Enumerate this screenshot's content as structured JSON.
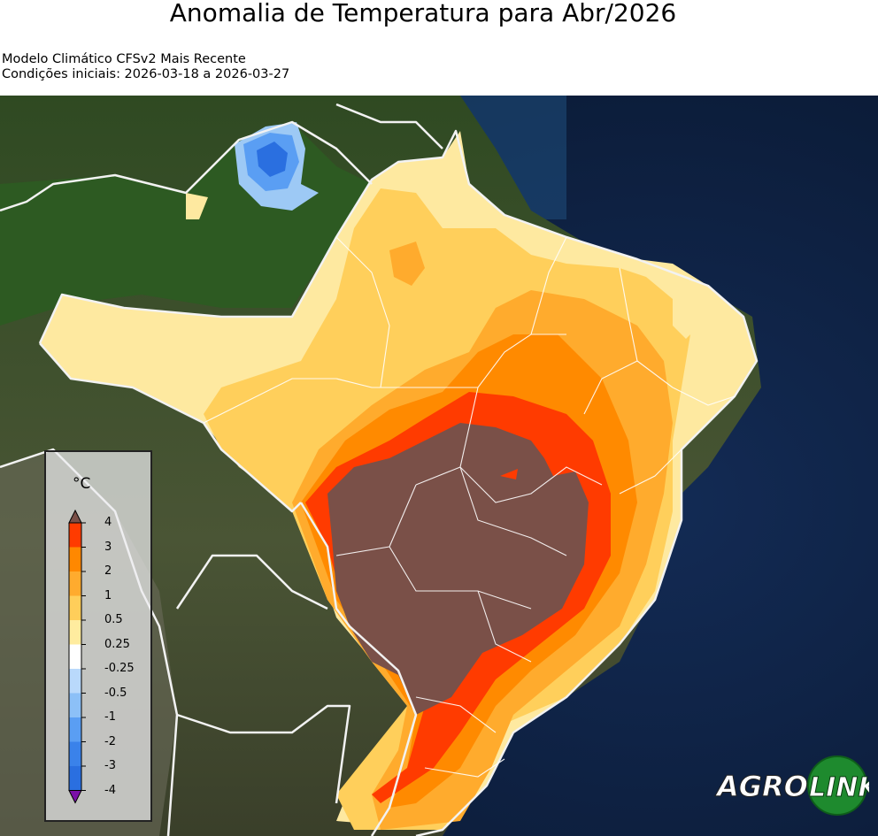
{
  "title": "Anomalia de Temperatura para Abr/2026",
  "subtitle_line1": "Modelo Climático CFSv2 Mais Recente",
  "subtitle_line2": "Condições iniciais: 2026-03-18 a 2026-03-27",
  "legend": {
    "unit": "°C",
    "ticks": [
      "4",
      "3",
      "2",
      "1",
      "0.5",
      "0.25",
      "-0.25",
      "-0.5",
      "-1",
      "-2",
      "-3",
      "-4"
    ],
    "colors": [
      "#ff3b00",
      "#ff8800",
      "#ffab2e",
      "#ffce5a",
      "#ffec9f",
      "#ffffff",
      "#b9d9fb",
      "#8cc0f7",
      "#5a9ef3",
      "#3a82ea",
      "#2a6fe0",
      "#7a0fa8"
    ],
    "over_color": "#7a5048",
    "under_color": "#7a0fa8"
  },
  "logo": {
    "text_agro": "AGRO",
    "text_link": "LINK"
  },
  "colors": {
    "ocean": "#0e2142",
    "land": "#3d4a2c",
    "forest": "#2e5a24",
    "border": "#ffffff"
  }
}
